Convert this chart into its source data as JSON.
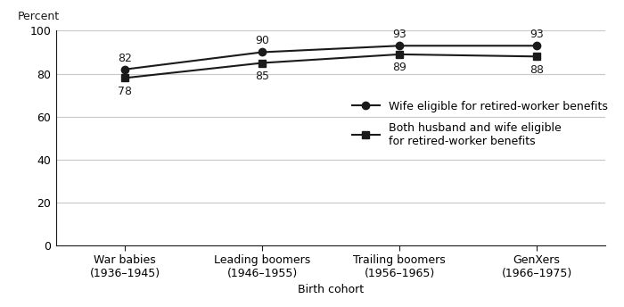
{
  "x_labels": [
    "War babies\n(1936–1945)",
    "Leading boomers\n(1946–1955)",
    "Trailing boomers\n(1956–1965)",
    "GenXers\n(1966–1975)"
  ],
  "x_positions": [
    0,
    1,
    2,
    3
  ],
  "series1_label": "Wife eligible for retired-worker benefits",
  "series1_values": [
    82,
    90,
    93,
    93
  ],
  "series1_marker": "o",
  "series2_label": "Both husband and wife eligible\nfor retired-worker benefits",
  "series2_values": [
    78,
    85,
    89,
    88
  ],
  "series2_marker": "s",
  "line_color": "#1a1a1a",
  "ylabel": "Percent",
  "xlabel": "Birth cohort",
  "ylim": [
    0,
    100
  ],
  "yticks": [
    0,
    20,
    40,
    60,
    80,
    100
  ],
  "grid_color": "#c8c8c8",
  "annotation_fontsize": 9,
  "label_fontsize": 9,
  "tick_fontsize": 9,
  "legend_fontsize": 9,
  "series1_annotation_offsets": [
    2.5,
    2.5,
    2.5,
    2.5
  ],
  "series2_annotation_offsets": [
    -3.5,
    -3.5,
    -3.5,
    -3.5
  ]
}
